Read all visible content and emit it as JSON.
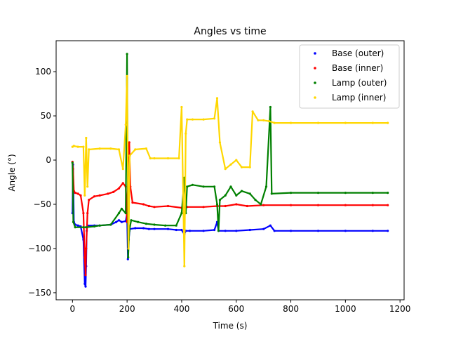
{
  "chart_data": {
    "type": "scatter",
    "title": "Angles vs time",
    "xlabel": "Time (s)",
    "ylabel": "Angle (°)",
    "xlim": [
      -60,
      1215
    ],
    "ylim": [
      -158,
      135
    ],
    "xticks": [
      0,
      200,
      400,
      600,
      800,
      1000,
      1200
    ],
    "yticks": [
      -150,
      -100,
      -50,
      0,
      50,
      100
    ],
    "xtick_labels": [
      "0",
      "200",
      "400",
      "600",
      "800",
      "1000",
      "1200"
    ],
    "ytick_labels": [
      "−150",
      "−100",
      "−50",
      "0",
      "50",
      "100"
    ],
    "grid": false,
    "legend_position": "top-right",
    "series": [
      {
        "name": "Base (outer)",
        "color": "#0000ff",
        "points": [
          [
            0,
            -60
          ],
          [
            2,
            -5
          ],
          [
            5,
            -70
          ],
          [
            10,
            -73
          ],
          [
            20,
            -74
          ],
          [
            30,
            -75
          ],
          [
            40,
            -90
          ],
          [
            45,
            -140
          ],
          [
            48,
            -143
          ],
          [
            50,
            -120
          ],
          [
            52,
            -80
          ],
          [
            55,
            -74
          ],
          [
            80,
            -74
          ],
          [
            100,
            -74
          ],
          [
            140,
            -73
          ],
          [
            160,
            -70
          ],
          [
            170,
            -68
          ],
          [
            180,
            -70
          ],
          [
            195,
            -69
          ],
          [
            200,
            -60
          ],
          [
            203,
            -112
          ],
          [
            206,
            -90
          ],
          [
            210,
            -78
          ],
          [
            230,
            -77
          ],
          [
            260,
            -77
          ],
          [
            280,
            -78
          ],
          [
            300,
            -78
          ],
          [
            350,
            -78
          ],
          [
            380,
            -79
          ],
          [
            400,
            -79
          ],
          [
            410,
            -84
          ],
          [
            415,
            -80
          ],
          [
            430,
            -80
          ],
          [
            480,
            -80
          ],
          [
            520,
            -79
          ],
          [
            530,
            -70
          ],
          [
            535,
            -80
          ],
          [
            560,
            -80
          ],
          [
            600,
            -80
          ],
          [
            650,
            -79
          ],
          [
            700,
            -78
          ],
          [
            725,
            -74
          ],
          [
            740,
            -80
          ],
          [
            800,
            -80
          ],
          [
            900,
            -80
          ],
          [
            1000,
            -80
          ],
          [
            1100,
            -80
          ],
          [
            1155,
            -80
          ]
        ]
      },
      {
        "name": "Base (inner)",
        "color": "#ff0000",
        "points": [
          [
            0,
            -2
          ],
          [
            2,
            -10
          ],
          [
            5,
            -35
          ],
          [
            10,
            -37
          ],
          [
            20,
            -38
          ],
          [
            30,
            -40
          ],
          [
            40,
            -60
          ],
          [
            45,
            -110
          ],
          [
            48,
            -130
          ],
          [
            50,
            -100
          ],
          [
            55,
            -60
          ],
          [
            60,
            -45
          ],
          [
            80,
            -41
          ],
          [
            100,
            -40
          ],
          [
            130,
            -38
          ],
          [
            150,
            -36
          ],
          [
            170,
            -32
          ],
          [
            185,
            -26
          ],
          [
            195,
            -30
          ],
          [
            200,
            -70
          ],
          [
            205,
            15
          ],
          [
            208,
            20
          ],
          [
            212,
            -30
          ],
          [
            220,
            -48
          ],
          [
            260,
            -50
          ],
          [
            280,
            -52
          ],
          [
            300,
            -53
          ],
          [
            350,
            -52
          ],
          [
            400,
            -54
          ],
          [
            420,
            -53
          ],
          [
            480,
            -53
          ],
          [
            530,
            -52
          ],
          [
            560,
            -52
          ],
          [
            600,
            -50
          ],
          [
            640,
            -52
          ],
          [
            700,
            -51
          ],
          [
            800,
            -51
          ],
          [
            900,
            -51
          ],
          [
            1000,
            -51
          ],
          [
            1100,
            -51
          ],
          [
            1155,
            -51
          ]
        ]
      },
      {
        "name": "Lamp (outer)",
        "color": "#008000",
        "points": [
          [
            0,
            -3
          ],
          [
            3,
            -70
          ],
          [
            10,
            -76
          ],
          [
            40,
            -76
          ],
          [
            50,
            -76
          ],
          [
            80,
            -75
          ],
          [
            100,
            -74
          ],
          [
            140,
            -73
          ],
          [
            170,
            -60
          ],
          [
            180,
            -55
          ],
          [
            195,
            -60
          ],
          [
            200,
            120
          ],
          [
            204,
            -110
          ],
          [
            208,
            -80
          ],
          [
            215,
            -68
          ],
          [
            240,
            -70
          ],
          [
            270,
            -72
          ],
          [
            300,
            -73
          ],
          [
            340,
            -74
          ],
          [
            380,
            -74
          ],
          [
            400,
            -60
          ],
          [
            410,
            -20
          ],
          [
            415,
            -60
          ],
          [
            420,
            -30
          ],
          [
            440,
            -28
          ],
          [
            480,
            -30
          ],
          [
            520,
            -30
          ],
          [
            530,
            -50
          ],
          [
            535,
            -80
          ],
          [
            540,
            -45
          ],
          [
            560,
            -40
          ],
          [
            580,
            -30
          ],
          [
            600,
            -40
          ],
          [
            620,
            -35
          ],
          [
            650,
            -38
          ],
          [
            670,
            -45
          ],
          [
            690,
            -50
          ],
          [
            710,
            -30
          ],
          [
            725,
            60
          ],
          [
            730,
            -38
          ],
          [
            800,
            -37
          ],
          [
            900,
            -37
          ],
          [
            1000,
            -37
          ],
          [
            1100,
            -37
          ],
          [
            1155,
            -37
          ]
        ]
      },
      {
        "name": "Lamp (inner)",
        "color": "#ffd700",
        "points": [
          [
            0,
            15
          ],
          [
            5,
            16
          ],
          [
            20,
            15
          ],
          [
            40,
            15
          ],
          [
            45,
            -40
          ],
          [
            50,
            25
          ],
          [
            55,
            -30
          ],
          [
            60,
            12
          ],
          [
            100,
            13
          ],
          [
            140,
            13
          ],
          [
            170,
            12
          ],
          [
            185,
            -10
          ],
          [
            195,
            40
          ],
          [
            200,
            95
          ],
          [
            205,
            -100
          ],
          [
            210,
            5
          ],
          [
            230,
            12
          ],
          [
            270,
            13
          ],
          [
            285,
            2
          ],
          [
            300,
            2
          ],
          [
            350,
            2
          ],
          [
            390,
            2
          ],
          [
            400,
            60
          ],
          [
            410,
            -120
          ],
          [
            415,
            30
          ],
          [
            420,
            46
          ],
          [
            440,
            46
          ],
          [
            480,
            46
          ],
          [
            520,
            47
          ],
          [
            530,
            70
          ],
          [
            540,
            20
          ],
          [
            560,
            -10
          ],
          [
            580,
            -5
          ],
          [
            600,
            0
          ],
          [
            620,
            -8
          ],
          [
            650,
            -8
          ],
          [
            660,
            55
          ],
          [
            680,
            45
          ],
          [
            700,
            45
          ],
          [
            720,
            44
          ],
          [
            740,
            42
          ],
          [
            800,
            42
          ],
          [
            900,
            42
          ],
          [
            1000,
            42
          ],
          [
            1100,
            42
          ],
          [
            1155,
            42
          ]
        ]
      }
    ]
  }
}
